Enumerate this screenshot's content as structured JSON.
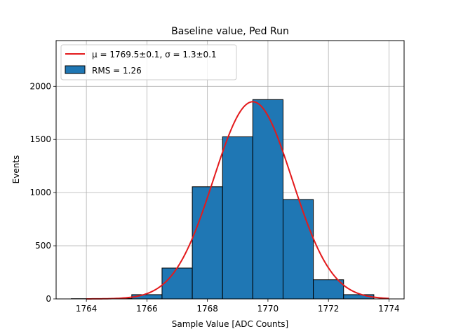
{
  "chart_data": {
    "type": "bar",
    "title": "Baseline value, Ped Run",
    "xlabel": "Sample Value [ADC Counts]",
    "ylabel": "Events",
    "xlim": [
      1763,
      1774.5
    ],
    "ylim": [
      0,
      2430
    ],
    "xticks": [
      1764,
      1766,
      1768,
      1770,
      1772,
      1774
    ],
    "yticks": [
      0,
      500,
      1000,
      1500,
      2000
    ],
    "grid": true,
    "legend_position": "top-left",
    "histogram": {
      "name": "RMS = 1.26",
      "color": "#1f77b4",
      "bins": [
        {
          "x0": 1763.5,
          "x1": 1764.5,
          "value": 2
        },
        {
          "x0": 1764.5,
          "x1": 1765.5,
          "value": 3
        },
        {
          "x0": 1765.5,
          "x1": 1766.5,
          "value": 40
        },
        {
          "x0": 1766.5,
          "x1": 1767.5,
          "value": 290
        },
        {
          "x0": 1767.5,
          "x1": 1768.5,
          "value": 1055
        },
        {
          "x0": 1768.5,
          "x1": 1769.5,
          "value": 1525
        },
        {
          "x0": 1769.5,
          "x1": 1770.5,
          "value": 1875
        },
        {
          "x0": 1770.5,
          "x1": 1771.5,
          "value": 935
        },
        {
          "x0": 1771.5,
          "x1": 1772.5,
          "value": 180
        },
        {
          "x0": 1772.5,
          "x1": 1773.5,
          "value": 40
        }
      ]
    },
    "fit": {
      "name": "μ = 1769.5±0.1, σ = 1.3±0.1",
      "color": "#e31a1c",
      "mu": 1769.5,
      "sigma": 1.3,
      "amplitude": 1855,
      "x_range": [
        1764,
        1774
      ]
    }
  }
}
